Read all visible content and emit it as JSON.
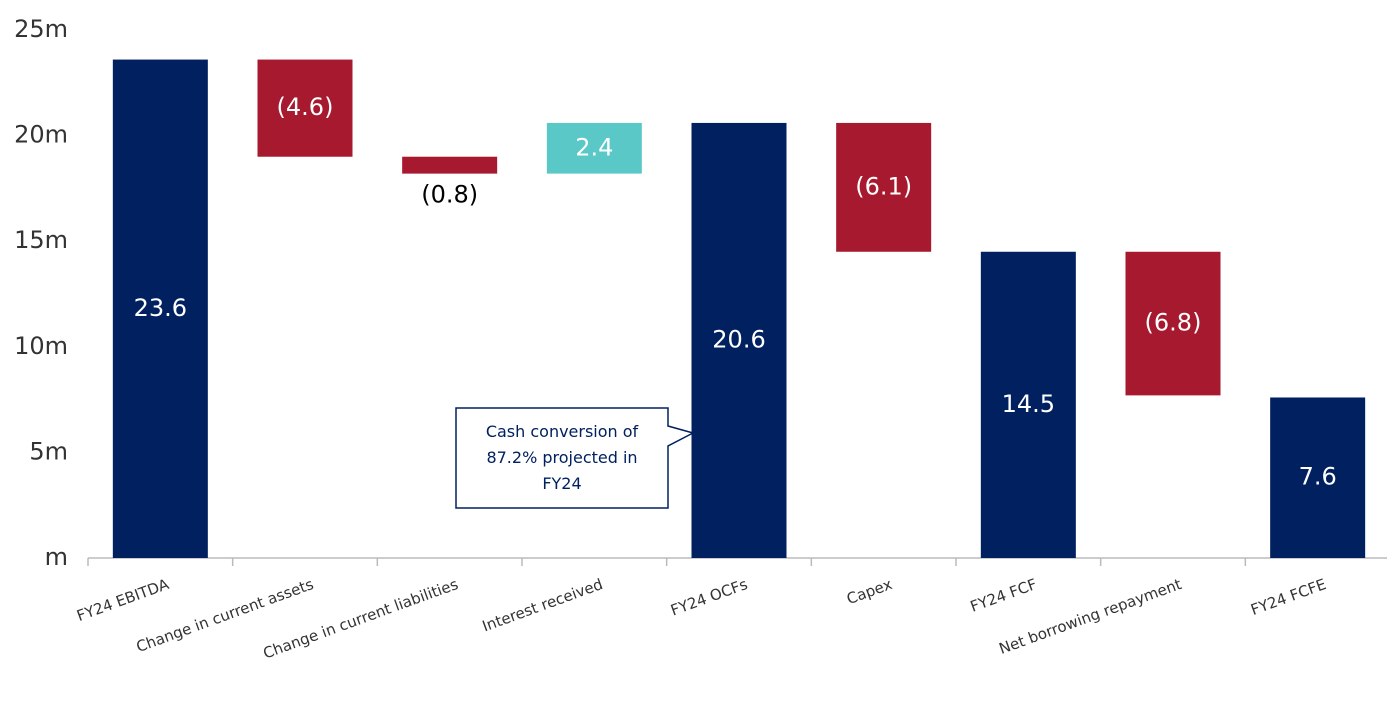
{
  "chart_data": {
    "type": "waterfall",
    "categories": [
      "FY24 EBITDA",
      "Change in current assets",
      "Change in current liabilities",
      "Interest received",
      "FY24 OCFs",
      "Capex",
      "FY24 FCF",
      "Net borrowing repayment",
      "FY24 FCFE"
    ],
    "values": [
      23.6,
      -4.6,
      -0.8,
      2.4,
      20.6,
      -6.1,
      14.5,
      -6.8,
      7.6
    ],
    "value_labels": [
      "23.6",
      "(4.6)",
      "(0.8)",
      "2.4",
      "20.6",
      "(6.1)",
      "14.5",
      "(6.8)",
      "7.6"
    ],
    "totals": [
      true,
      false,
      false,
      false,
      true,
      false,
      true,
      false,
      true
    ],
    "colors": {
      "total": "#002060",
      "negative": "#a6192e",
      "positive": "#5bc8c8"
    },
    "ylim": [
      0,
      25
    ],
    "yticks": [
      {
        "value": 0,
        "label": "m"
      },
      {
        "value": 5,
        "label": "5m"
      },
      {
        "value": 10,
        "label": "10m"
      },
      {
        "value": 15,
        "label": "15m"
      },
      {
        "value": 20,
        "label": "20m"
      },
      {
        "value": 25,
        "label": "25m"
      }
    ],
    "annotation": "Cash conversion of 87.2% projected in FY24"
  }
}
